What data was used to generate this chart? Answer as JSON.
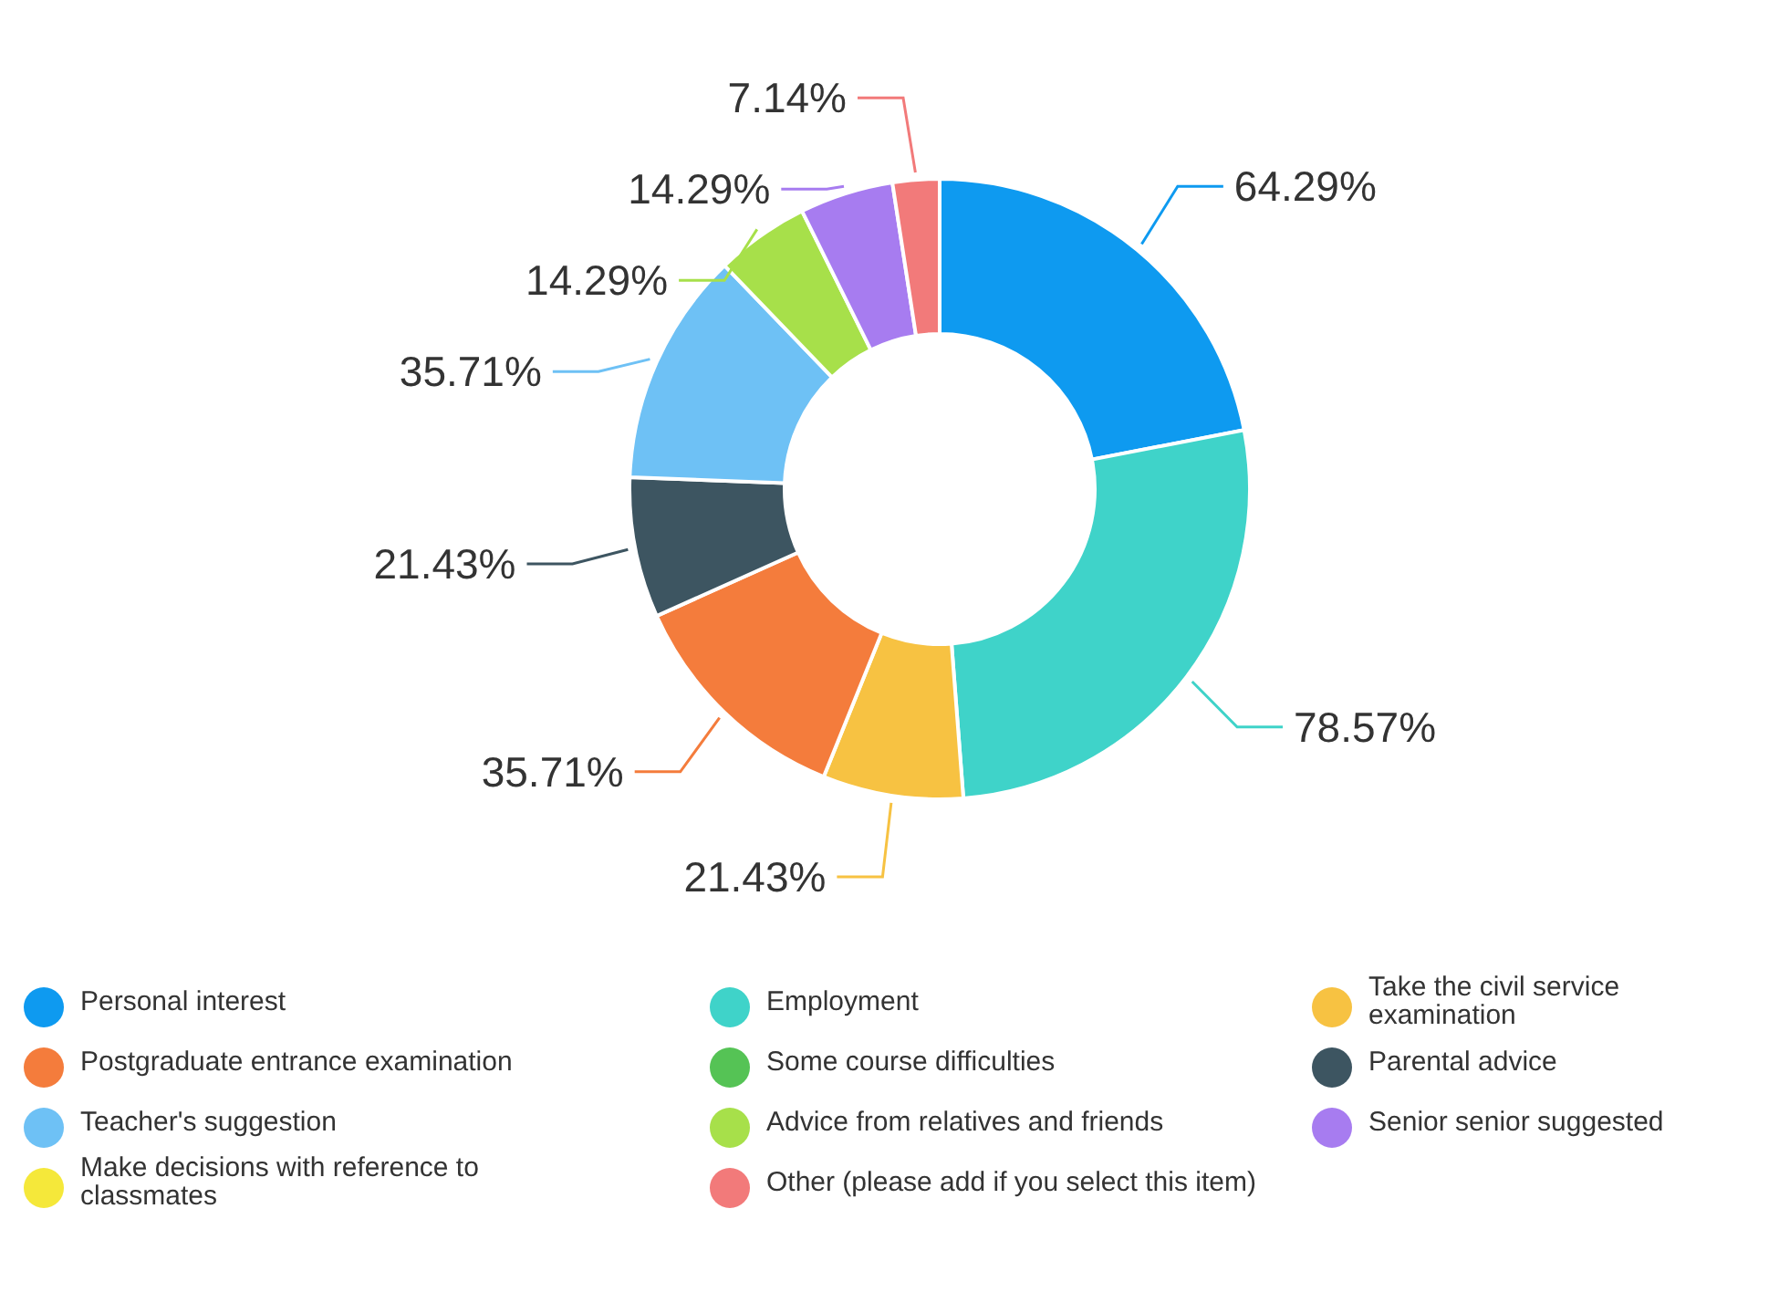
{
  "chart_data": {
    "type": "donut",
    "categories": [
      "Personal interest",
      "Employment",
      "Take the civil service examination",
      "Postgraduate entrance examination",
      "Some course difficulties",
      "Parental advice",
      "Teacher's suggestion",
      "Advice from relatives and friends",
      "Senior senior suggested",
      "Make decisions with reference to classmates",
      "Other (please add if you select this item)"
    ],
    "values": [
      64.29,
      78.57,
      21.43,
      35.71,
      0,
      21.43,
      35.71,
      14.29,
      14.29,
      0,
      7.14
    ],
    "value_labels": [
      "64.29%",
      "78.57%",
      "21.43%",
      "35.71%",
      null,
      "21.43%",
      "35.71%",
      "14.29%",
      "14.29%",
      null,
      "7.14%"
    ],
    "colors": [
      "#0e9af0",
      "#3fd3c9",
      "#f7c242",
      "#f47c3c",
      "#55c355",
      "#3d5561",
      "#6ec1f5",
      "#a7e04a",
      "#a77cf0",
      "#f5e83a",
      "#f27a7a"
    ],
    "legend": "bottom"
  }
}
